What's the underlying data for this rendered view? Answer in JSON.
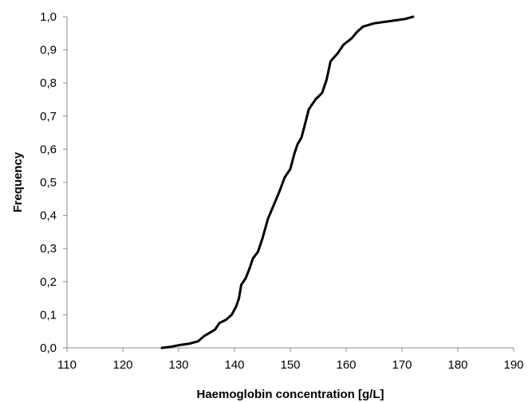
{
  "chart_data": {
    "type": "line",
    "title": "",
    "xlabel": "Haemoglobin concentration [g/L]",
    "ylabel": "Frequency",
    "xlim": [
      110,
      190
    ],
    "ylim": [
      0,
      1.0
    ],
    "x_ticks": [
      "110",
      "120",
      "130",
      "140",
      "150",
      "160",
      "170",
      "180",
      "190"
    ],
    "y_ticks": [
      "0,0",
      "0,1",
      "0,2",
      "0,3",
      "0,4",
      "0,5",
      "0,6",
      "0,7",
      "0,8",
      "0,9",
      "1,0"
    ],
    "grid": false,
    "legend": "none",
    "series": [
      {
        "color": "#000000",
        "points": [
          [
            127,
            0.0
          ],
          [
            128.5,
            0.003
          ],
          [
            130,
            0.008
          ],
          [
            132,
            0.013
          ],
          [
            133.5,
            0.02
          ],
          [
            134.5,
            0.035
          ],
          [
            135.5,
            0.045
          ],
          [
            136.5,
            0.055
          ],
          [
            137.3,
            0.075
          ],
          [
            138.5,
            0.085
          ],
          [
            139.5,
            0.1
          ],
          [
            140.3,
            0.125
          ],
          [
            140.8,
            0.15
          ],
          [
            141.2,
            0.19
          ],
          [
            142,
            0.21
          ],
          [
            142.7,
            0.24
          ],
          [
            143.3,
            0.27
          ],
          [
            144.2,
            0.29
          ],
          [
            145,
            0.33
          ],
          [
            146,
            0.39
          ],
          [
            147,
            0.43
          ],
          [
            148,
            0.47
          ],
          [
            149,
            0.515
          ],
          [
            150,
            0.54
          ],
          [
            150.7,
            0.585
          ],
          [
            151.3,
            0.615
          ],
          [
            152,
            0.635
          ],
          [
            152.7,
            0.68
          ],
          [
            153.3,
            0.72
          ],
          [
            154.5,
            0.75
          ],
          [
            155.7,
            0.77
          ],
          [
            156.5,
            0.81
          ],
          [
            157.2,
            0.865
          ],
          [
            158.5,
            0.89
          ],
          [
            159.5,
            0.915
          ],
          [
            161,
            0.935
          ],
          [
            162,
            0.955
          ],
          [
            163,
            0.97
          ],
          [
            165,
            0.98
          ],
          [
            168,
            0.987
          ],
          [
            170.5,
            0.993
          ],
          [
            172,
            1.0
          ]
        ]
      }
    ]
  }
}
